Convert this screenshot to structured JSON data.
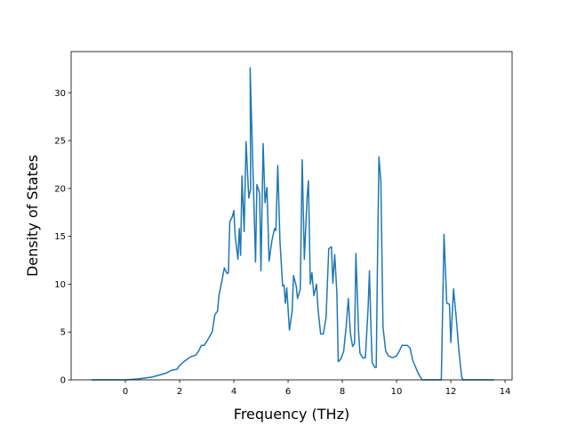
{
  "chart_data": {
    "type": "line",
    "xlabel": "Frequency (THz)",
    "ylabel": "Density of States",
    "xlim": [
      -2.0,
      14.26
    ],
    "ylim": [
      0,
      34.3
    ],
    "xticks": [
      0,
      2,
      4,
      6,
      8,
      10,
      12,
      14
    ],
    "yticks": [
      0,
      5,
      10,
      15,
      20,
      25,
      30
    ],
    "series": [
      {
        "color": "#1f77b4",
        "x": [
          -1.25,
          0,
          0.5,
          1,
          1.5,
          1.7,
          1.9,
          2.0,
          2.2,
          2.4,
          2.6,
          2.7,
          2.8,
          2.9,
          3.0,
          3.1,
          3.2,
          3.3,
          3.4,
          3.45,
          3.55,
          3.65,
          3.75,
          3.8,
          3.85,
          3.95,
          4.0,
          4.05,
          4.15,
          4.2,
          4.25,
          4.3,
          4.38,
          4.45,
          4.55,
          4.62,
          4.6,
          4.8,
          4.85,
          4.95,
          5.0,
          5.08,
          5.15,
          5.22,
          5.3,
          5.4,
          5.5,
          5.55,
          5.62,
          5.7,
          5.8,
          5.85,
          5.9,
          5.95,
          6.05,
          6.15,
          6.2,
          6.3,
          6.35,
          6.45,
          6.52,
          6.6,
          6.7,
          6.75,
          6.82,
          6.88,
          6.95,
          7.05,
          7.1,
          7.2,
          7.3,
          7.4,
          7.5,
          7.6,
          7.65,
          7.72,
          7.8,
          7.85,
          7.95,
          8.05,
          8.15,
          8.22,
          8.3,
          8.38,
          8.45,
          8.5,
          8.6,
          8.65,
          8.75,
          8.85,
          8.95,
          9.0,
          9.05,
          9.1,
          9.2,
          9.25,
          9.3,
          9.35,
          9.42,
          9.5,
          9.6,
          9.7,
          9.85,
          10.0,
          10.1,
          10.2,
          10.4,
          10.5,
          10.6,
          10.75,
          10.85,
          10.95,
          11.5,
          11.65,
          11.75,
          11.85,
          11.95,
          12.0,
          12.1,
          12.2,
          12.3,
          12.4,
          12.45,
          13.6
        ],
        "values": [
          0,
          0,
          0.1,
          0.3,
          0.7,
          1.0,
          1.1,
          1.5,
          2.0,
          2.4,
          2.6,
          3.0,
          3.6,
          3.6,
          4.0,
          4.5,
          5.0,
          6.8,
          7.2,
          8.8,
          10.2,
          11.7,
          11.1,
          11.2,
          16.5,
          17.1,
          17.7,
          15,
          12.6,
          15.8,
          13,
          21.3,
          15.5,
          24.9,
          19,
          20,
          32.6,
          12.3,
          20.4,
          19.5,
          11.4,
          24.7,
          18.5,
          20.1,
          12.4,
          14.5,
          15.8,
          15.6,
          22.4,
          14.5,
          9.8,
          9.9,
          8,
          9.6,
          5.2,
          7.2,
          10.9,
          9.8,
          8.5,
          9.5,
          23,
          12.6,
          19,
          20.8,
          10,
          11.2,
          8.8,
          10,
          7.5,
          4.8,
          4.8,
          6.5,
          13.7,
          13.9,
          10.1,
          13.1,
          9,
          1.9,
          2.2,
          3,
          5.8,
          8.5,
          4.8,
          3.5,
          3.8,
          13.2,
          5,
          2.8,
          2.3,
          2.3,
          7.5,
          11.4,
          6,
          1.8,
          1.3,
          1.3,
          13,
          23.3,
          20.8,
          5.5,
          3,
          2.5,
          2.3,
          2.5,
          3,
          3.6,
          3.6,
          3.3,
          2.0,
          1.0,
          0.4,
          0,
          0,
          0,
          15.2,
          8,
          7.9,
          3.9,
          9.5,
          6.5,
          3,
          0.3,
          0,
          0
        ]
      }
    ]
  }
}
